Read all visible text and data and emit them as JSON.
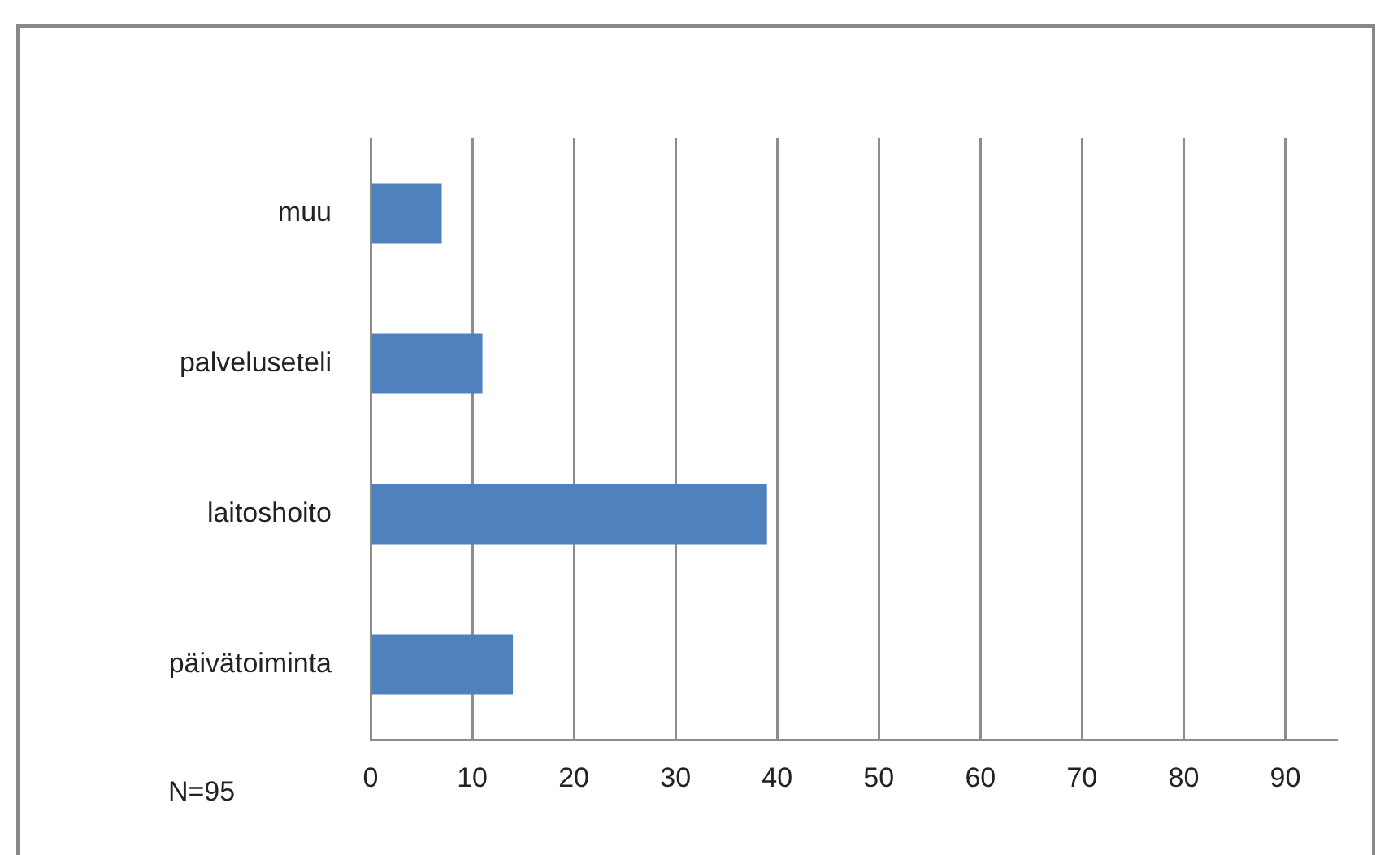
{
  "chart_data": {
    "type": "bar",
    "orientation": "horizontal",
    "categories": [
      "muu",
      "palveluseteli",
      "laitoshoito",
      "päivätoiminta"
    ],
    "values": [
      7,
      11,
      39,
      14
    ],
    "color": "#4f81bd",
    "xlim": [
      0,
      95
    ],
    "xticks": [
      0,
      10,
      20,
      30,
      40,
      50,
      60,
      70,
      80,
      90
    ],
    "grid": "x",
    "legend": false,
    "annotations": [
      "N=95"
    ]
  }
}
